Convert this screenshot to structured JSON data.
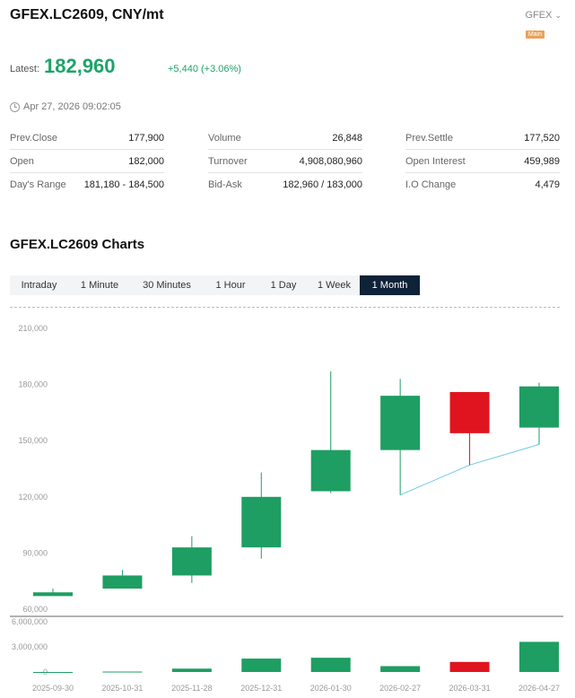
{
  "header": {
    "title": "GFEX.LC2609, CNY/mt",
    "exchange": "GFEX",
    "badge": "Main"
  },
  "quote": {
    "latest_label": "Latest:",
    "latest_value": "182,960",
    "change": "+5,440 (+3.06%)",
    "timestamp": "Apr 27, 2026 09:02:05"
  },
  "stats": {
    "col1": [
      {
        "label": "Prev.Close",
        "value": "177,900"
      },
      {
        "label": "Open",
        "value": "182,000"
      },
      {
        "label": "Day's Range",
        "value": "181,180 - 184,500"
      }
    ],
    "col2": [
      {
        "label": "Volume",
        "value": "26,848"
      },
      {
        "label": "Turnover",
        "value": "4,908,080,960"
      },
      {
        "label": "Bid-Ask",
        "value": "182,960 / 183,000"
      }
    ],
    "col3": [
      {
        "label": "Prev.Settle",
        "value": "177,520"
      },
      {
        "label": "Open Interest",
        "value": "459,989"
      },
      {
        "label": "I.O Change",
        "value": "4,479"
      }
    ]
  },
  "charts_section": {
    "title": "GFEX.LC2609 Charts",
    "tabs": [
      "Intraday",
      "1 Minute",
      "30 Minutes",
      "1 Hour",
      "1 Day",
      "1 Week",
      "1 Month"
    ],
    "active_tab": "1 Month"
  },
  "colors": {
    "up": "#1e9e63",
    "down": "#e0141e",
    "line": "#6ec9e6"
  },
  "chart_data": {
    "type": "candlestick",
    "price_ticks": [
      "210,000",
      "180,000",
      "150,000",
      "120,000",
      "90,000",
      "60,000"
    ],
    "price_tick_values": [
      210000,
      180000,
      150000,
      120000,
      90000,
      60000
    ],
    "ylim": [
      60000,
      210000
    ],
    "volume_ticks": [
      "6,000,000",
      "3,000,000",
      "0"
    ],
    "volume_tick_values": [
      6000000,
      3000000,
      0
    ],
    "volume_max": 6000000,
    "categories": [
      "2025-09-30",
      "2025-10-31",
      "2025-11-28",
      "2025-12-31",
      "2026-01-30",
      "2026-02-27",
      "2026-03-31",
      "2026-04-27"
    ],
    "candles": [
      {
        "open": 67000,
        "close": 69000,
        "high": 71000,
        "low": 67000,
        "dir": "up"
      },
      {
        "open": 71000,
        "close": 78000,
        "high": 81000,
        "low": 71000,
        "dir": "up"
      },
      {
        "open": 78000,
        "close": 93000,
        "high": 99000,
        "low": 74000,
        "dir": "up"
      },
      {
        "open": 93000,
        "close": 120000,
        "high": 133000,
        "low": 87000,
        "dir": "up"
      },
      {
        "open": 123000,
        "close": 145000,
        "high": 187000,
        "low": 122000,
        "dir": "up"
      },
      {
        "open": 145000,
        "close": 174000,
        "high": 183000,
        "low": 121000,
        "dir": "up"
      },
      {
        "open": 176000,
        "close": 154000,
        "high": 176000,
        "low": 137000,
        "dir": "down"
      },
      {
        "open": 157000,
        "close": 179000,
        "high": 181000,
        "low": 148000,
        "dir": "up"
      }
    ],
    "volumes": [
      0,
      50000,
      400000,
      1600000,
      1700000,
      700000,
      1200000,
      3600000
    ],
    "overlay_line": [
      {
        "x": "2026-02-27",
        "y": 121000
      },
      {
        "x": "2026-03-31",
        "y": 137000
      },
      {
        "x": "2026-04-27",
        "y": 148000
      }
    ]
  }
}
